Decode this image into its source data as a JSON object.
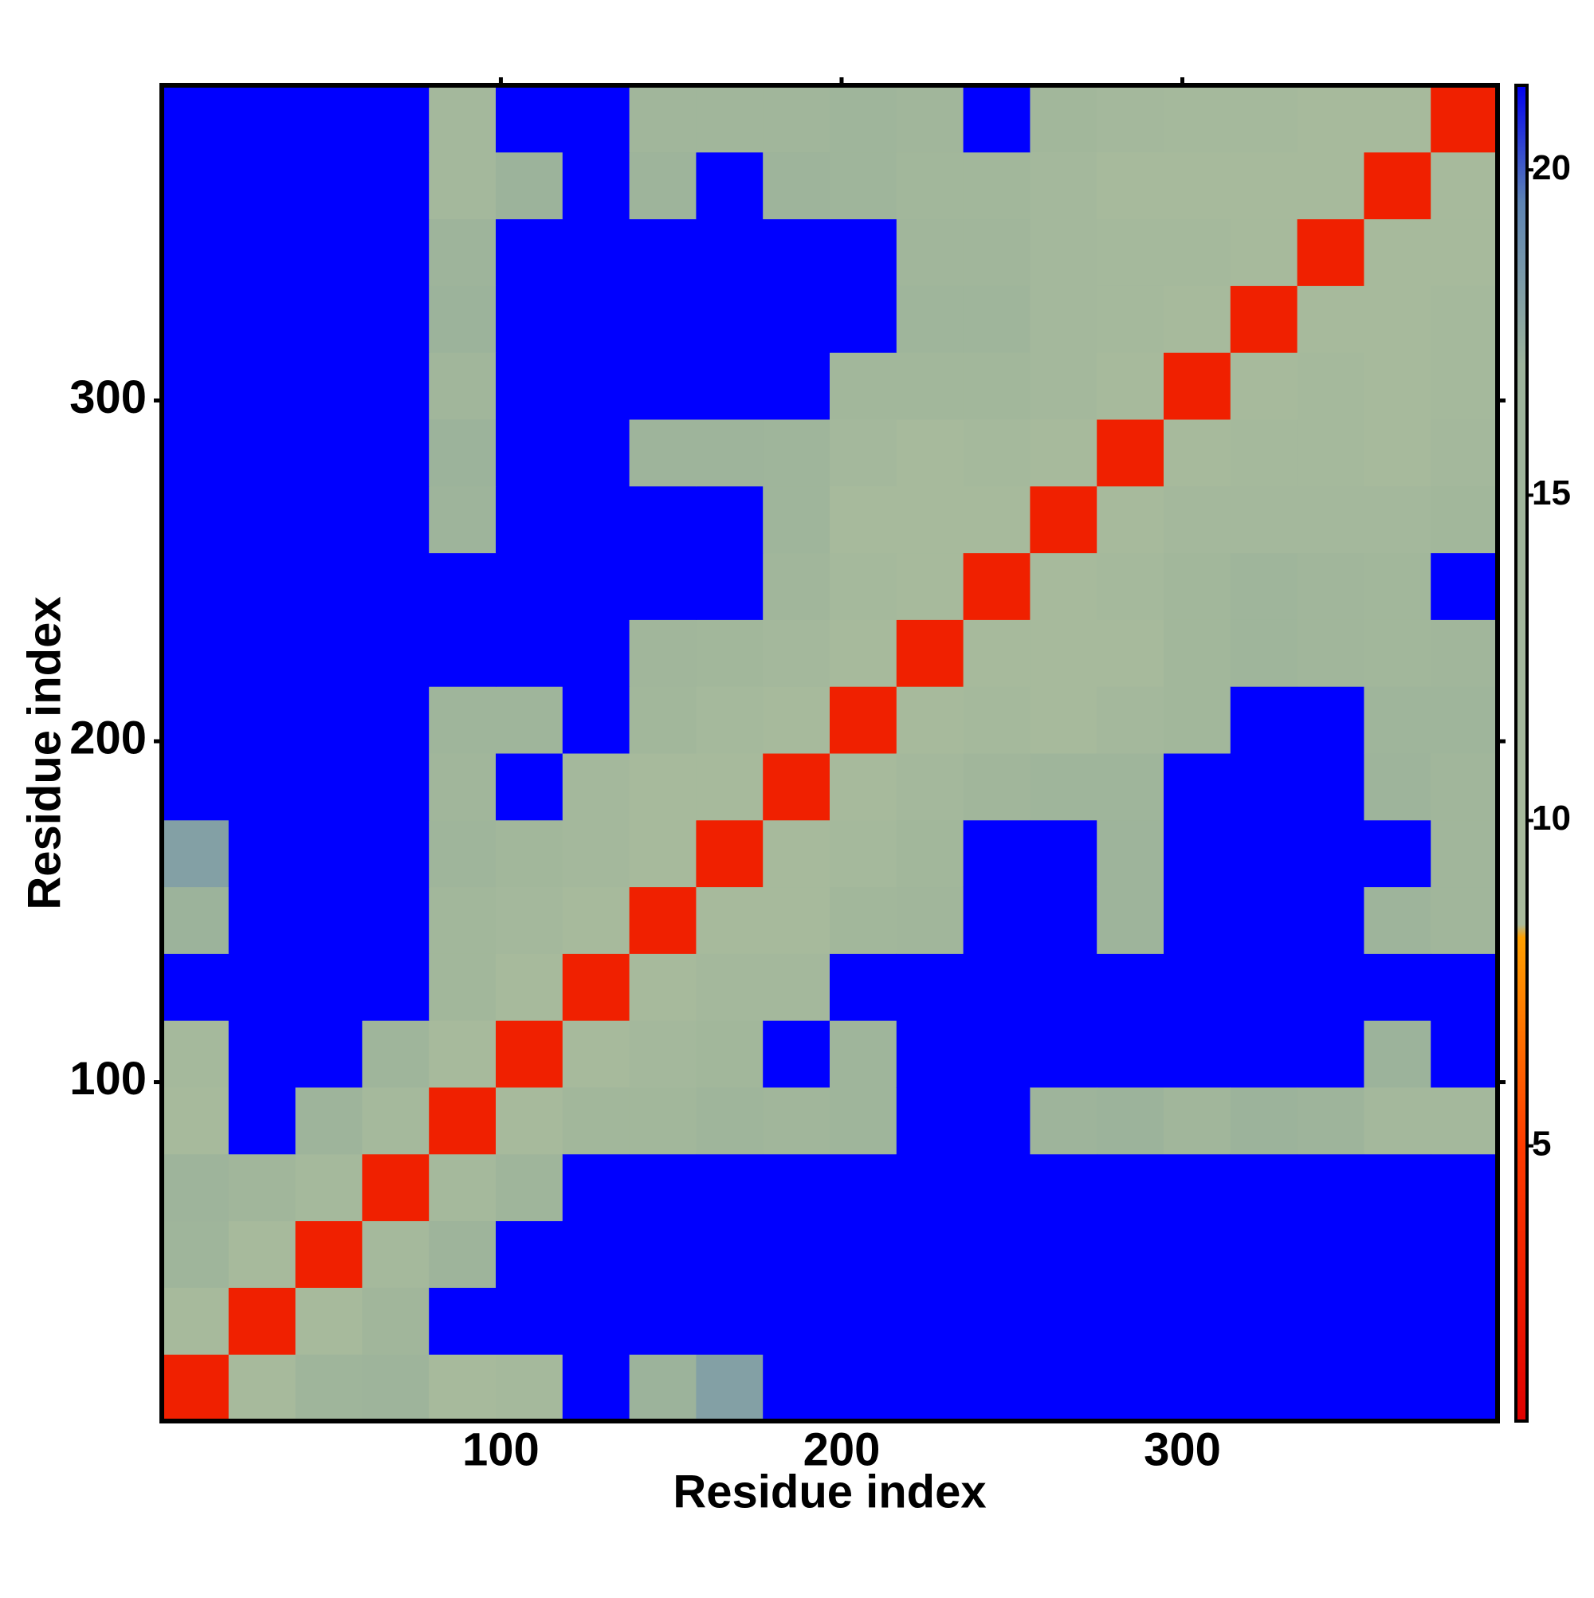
{
  "chart_data": {
    "type": "heatmap",
    "xlabel": "Residue index",
    "ylabel": "Residue index",
    "xlim": [
      0.5,
      392.5
    ],
    "ylim": [
      0.5,
      392.5
    ],
    "xticks": [
      100,
      200,
      300
    ],
    "yticks": [
      100,
      200,
      300
    ],
    "bin_edges": [
      0.5,
      20.1,
      39.7,
      59.3,
      78.9,
      98.5,
      118.1,
      137.7,
      157.3,
      176.9,
      196.5,
      216.1,
      235.7,
      255.3,
      274.9,
      294.5,
      314.1,
      333.7,
      353.3,
      372.9,
      392.5
    ],
    "symmetric": true,
    "values": [
      [
        3
      ],
      [
        10,
        3
      ],
      [
        15,
        10,
        3
      ],
      [
        16,
        14,
        11,
        3
      ],
      [
        10,
        30,
        16,
        11,
        3
      ],
      [
        11,
        30,
        30,
        15,
        10,
        3
      ],
      [
        30,
        30,
        30,
        30,
        13,
        10,
        3
      ],
      [
        17,
        30,
        30,
        30,
        13,
        12,
        10,
        3
      ],
      [
        18,
        30,
        30,
        30,
        15,
        13,
        12,
        10,
        3
      ],
      [
        30,
        30,
        30,
        30,
        14,
        30,
        12,
        10,
        10,
        3
      ],
      [
        30,
        30,
        30,
        30,
        15,
        15,
        30,
        13,
        11,
        10,
        3
      ],
      [
        30,
        30,
        30,
        30,
        30,
        30,
        30,
        14,
        13,
        12,
        10,
        3
      ],
      [
        30,
        30,
        30,
        30,
        30,
        30,
        30,
        30,
        30,
        14,
        11,
        10,
        3
      ],
      [
        30,
        30,
        30,
        30,
        16,
        30,
        30,
        30,
        30,
        15,
        10,
        10,
        10,
        3
      ],
      [
        30,
        30,
        30,
        30,
        17,
        30,
        30,
        16,
        16,
        15,
        12,
        10,
        11,
        10,
        3
      ],
      [
        30,
        30,
        30,
        30,
        14,
        30,
        30,
        30,
        30,
        30,
        13,
        13,
        13,
        12,
        10,
        3
      ],
      [
        30,
        30,
        30,
        30,
        17,
        30,
        30,
        30,
        30,
        30,
        30,
        15,
        15,
        12,
        11,
        10,
        3
      ],
      [
        30,
        30,
        30,
        30,
        16,
        30,
        30,
        30,
        30,
        30,
        30,
        14,
        14,
        12,
        11,
        11,
        10,
        3
      ],
      [
        30,
        30,
        30,
        30,
        12,
        17,
        30,
        16,
        30,
        16,
        15,
        13,
        13,
        12,
        10,
        10,
        10,
        10,
        3
      ],
      [
        30,
        30,
        30,
        30,
        12,
        30,
        30,
        14,
        14,
        14,
        15,
        14,
        30,
        13,
        12,
        11,
        11,
        10,
        10,
        3
      ]
    ],
    "colorbar": {
      "lim": [
        0.77,
        21.3
      ],
      "ticks": [
        5,
        10,
        15,
        20
      ]
    },
    "colorscale": [
      [
        0.77,
        "#e00000"
      ],
      [
        5,
        "#ff3c00"
      ],
      [
        8.2,
        "#ffa000"
      ],
      [
        8.4,
        "#a9bb9c"
      ],
      [
        17,
        "#9cb39b"
      ],
      [
        19.5,
        "#5d84b4"
      ],
      [
        21.3,
        "#0000f0"
      ]
    ],
    "over_color": "#0000ff"
  }
}
